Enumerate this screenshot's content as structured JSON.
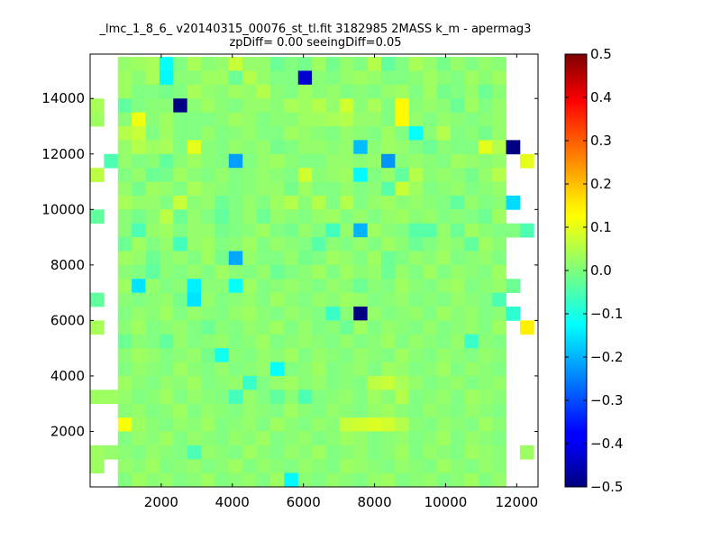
{
  "chart_data": {
    "type": "heatmap",
    "title": "_lmc_1_8_6_ v20140315_00076_st_tl.fit 3182985 2MASS k_m - apermag3",
    "subtitle": "zpDiff= 0.00 seeingDiff=0.05",
    "xlabel": "",
    "ylabel": "",
    "xlim": [
      0,
      12600
    ],
    "ylim": [
      0,
      15600
    ],
    "x_ticks": [
      2000,
      4000,
      6000,
      8000,
      10000,
      12000
    ],
    "y_ticks": [
      2000,
      4000,
      6000,
      8000,
      10000,
      12000,
      14000
    ],
    "grid": false,
    "colormap": "jet",
    "color_range": [
      -0.5,
      0.5
    ],
    "colorbar": {
      "ticks": [
        "0.5",
        "0.4",
        "0.3",
        "0.2",
        "0.1",
        "0.0",
        "−0.1",
        "−0.2",
        "−0.3",
        "−0.4",
        "−0.5"
      ],
      "values": [
        0.5,
        0.4,
        0.3,
        0.2,
        0.1,
        0.0,
        -0.1,
        -0.2,
        -0.3,
        -0.4,
        -0.5
      ]
    },
    "cell_size": [
      390,
      500
    ],
    "col_x_centers": [
      195,
      585,
      975,
      1365,
      1755,
      2145,
      2535,
      2925,
      3315,
      3705,
      4095,
      4485,
      4875,
      5265,
      5655,
      6045,
      6435,
      6825,
      7215,
      7605,
      7995,
      8385,
      8775,
      9165,
      9555,
      9945,
      10335,
      10725,
      11115,
      11505,
      11895,
      12285
    ],
    "row_y_centers": [
      15250,
      14750,
      14250,
      13750,
      13250,
      12750,
      12250,
      11750,
      11250,
      10750,
      10250,
      9750,
      9250,
      8750,
      8250,
      7750,
      7250,
      6750,
      6250,
      5750,
      5250,
      4750,
      4250,
      3750,
      3250,
      2750,
      2250,
      1750,
      1250,
      750,
      250
    ],
    "row_values": [
      [
        null,
        null,
        0.02,
        0.03,
        0.04,
        -0.12,
        0.0,
        0.04,
        0.01,
        0.02,
        0.07,
        0.02,
        0.02,
        -0.02,
        0.0,
        -0.01,
        0.03,
        -0.01,
        0.02,
        0.0,
        0.05,
        -0.03,
        0.0,
        0.04,
        0.02,
        -0.01,
        0.02,
        0.0,
        0.02,
        0.01,
        null,
        null
      ],
      [
        null,
        null,
        0.03,
        0.01,
        0.04,
        -0.13,
        0.01,
        0.01,
        0.03,
        0.03,
        -0.02,
        0.05,
        0.02,
        0.0,
        0.0,
        -0.42,
        0.01,
        0.0,
        0.02,
        0.03,
        0.02,
        0.0,
        0.0,
        0.01,
        0.03,
        0.01,
        0.0,
        0.03,
        0.01,
        0.03,
        null,
        null
      ],
      [
        null,
        null,
        0.03,
        0.0,
        0.0,
        -0.01,
        0.0,
        0.04,
        0.02,
        0.01,
        0.03,
        0.02,
        0.05,
        0.01,
        0.0,
        0.03,
        0.01,
        0.02,
        0.0,
        0.01,
        0.0,
        0.02,
        0.03,
        0.0,
        0.03,
        -0.01,
        0.0,
        0.02,
        -0.02,
        0.01,
        null,
        null
      ],
      [
        0.04,
        null,
        -0.03,
        0.0,
        0.01,
        0.01,
        -0.5,
        0.01,
        0.03,
        0.01,
        0.0,
        0.02,
        0.02,
        0.01,
        0.04,
        0.03,
        0.05,
        0.02,
        0.08,
        0.01,
        0.04,
        0.0,
        0.13,
        0.01,
        0.02,
        0.01,
        -0.02,
        0.03,
        0.0,
        0.02,
        null,
        null
      ],
      [
        0.03,
        null,
        0.01,
        0.11,
        0.01,
        0.03,
        0.0,
        0.0,
        0.0,
        0.01,
        0.03,
        0.02,
        0.0,
        0.01,
        0.01,
        0.03,
        0.03,
        0.04,
        0.05,
        0.02,
        0.02,
        0.0,
        0.13,
        0.02,
        0.0,
        0.02,
        0.01,
        0.0,
        0.01,
        0.02,
        null,
        null
      ],
      [
        null,
        null,
        0.05,
        0.07,
        0.0,
        0.03,
        0.0,
        0.0,
        0.02,
        0.0,
        0.01,
        0.02,
        0.0,
        0.0,
        0.03,
        0.02,
        0.01,
        0.0,
        0.02,
        0.01,
        0.0,
        0.03,
        0.0,
        -0.12,
        0.01,
        0.05,
        0.0,
        0.01,
        -0.01,
        0.02,
        null,
        null
      ],
      [
        null,
        null,
        0.02,
        0.05,
        0.03,
        0.04,
        0.0,
        0.1,
        0.01,
        0.0,
        0.02,
        0.01,
        0.02,
        -0.01,
        0.0,
        0.02,
        0.02,
        0.01,
        0.02,
        -0.19,
        0.01,
        0.03,
        0.02,
        0.0,
        -0.02,
        0.01,
        0.0,
        0.0,
        0.1,
        0.05,
        -0.5,
        null
      ],
      [
        null,
        -0.05,
        0.02,
        0.0,
        0.01,
        -0.03,
        0.01,
        0.03,
        0.01,
        0.0,
        -0.22,
        0.0,
        0.02,
        0.03,
        0.01,
        0.0,
        0.0,
        0.02,
        0.02,
        0.01,
        0.02,
        -0.23,
        0.01,
        0.02,
        0.01,
        0.0,
        0.03,
        0.02,
        0.01,
        0.02,
        null,
        0.1
      ],
      [
        0.06,
        null,
        0.0,
        0.02,
        -0.02,
        -0.01,
        0.03,
        0.01,
        0.0,
        0.02,
        0.0,
        0.01,
        0.02,
        0.01,
        0.0,
        0.08,
        0.01,
        0.02,
        0.03,
        -0.13,
        0.0,
        0.02,
        -0.03,
        0.05,
        0.01,
        0.02,
        0.01,
        -0.01,
        0.02,
        0.05,
        null,
        null
      ],
      [
        null,
        null,
        0.02,
        -0.01,
        0.03,
        0.02,
        0.0,
        0.04,
        0.02,
        0.01,
        0.0,
        0.01,
        0.02,
        0.02,
        -0.01,
        0.03,
        0.0,
        0.0,
        0.02,
        0.0,
        0.01,
        -0.04,
        0.07,
        0.03,
        0.0,
        0.01,
        0.02,
        0.0,
        0.01,
        0.02,
        null,
        null
      ],
      [
        null,
        null,
        0.04,
        0.02,
        0.02,
        0.0,
        0.07,
        0.01,
        0.02,
        -0.02,
        0.0,
        0.02,
        0.0,
        0.03,
        0.05,
        0.01,
        0.05,
        0.0,
        0.05,
        0.0,
        0.02,
        0.03,
        0.01,
        0.02,
        0.01,
        0.0,
        -0.03,
        0.02,
        0.0,
        0.01,
        -0.16,
        null
      ],
      [
        -0.03,
        null,
        0.01,
        -0.01,
        0.01,
        0.06,
        -0.02,
        0.02,
        0.0,
        -0.03,
        0.0,
        0.02,
        -0.02,
        0.02,
        0.01,
        0.0,
        0.02,
        0.03,
        0.0,
        0.02,
        0.0,
        0.02,
        0.03,
        0.01,
        0.02,
        0.0,
        0.01,
        0.0,
        -0.02,
        0.03,
        null,
        null
      ],
      [
        null,
        null,
        0.01,
        -0.05,
        0.02,
        0.03,
        0.0,
        0.02,
        0.02,
        -0.01,
        0.0,
        0.01,
        0.03,
        0.0,
        -0.01,
        0.02,
        0.0,
        -0.06,
        0.02,
        -0.2,
        0.03,
        0.01,
        0.0,
        -0.04,
        -0.04,
        0.02,
        -0.02,
        0.03,
        0.01,
        0.0,
        0.0,
        -0.05
      ],
      [
        null,
        null,
        -0.02,
        0.03,
        0.0,
        0.02,
        -0.06,
        0.02,
        0.03,
        0.0,
        0.01,
        0.03,
        0.0,
        0.02,
        0.01,
        0.0,
        -0.04,
        0.01,
        0.0,
        0.02,
        0.0,
        0.03,
        0.01,
        -0.02,
        0.0,
        0.02,
        0.01,
        -0.03,
        0.03,
        0.01,
        null,
        null
      ],
      [
        null,
        null,
        0.03,
        0.02,
        -0.02,
        0.01,
        0.02,
        0.0,
        0.03,
        -0.01,
        -0.21,
        0.02,
        0.0,
        0.0,
        0.02,
        -0.01,
        0.0,
        0.03,
        0.02,
        0.0,
        0.03,
        -0.02,
        0.0,
        0.02,
        0.01,
        0.03,
        0.0,
        0.01,
        0.02,
        0.0,
        null,
        null
      ],
      [
        null,
        null,
        0.01,
        0.0,
        -0.03,
        0.01,
        0.0,
        0.02,
        0.0,
        0.03,
        0.01,
        0.0,
        0.02,
        -0.02,
        0.0,
        0.01,
        0.03,
        0.0,
        0.03,
        0.01,
        0.02,
        -0.02,
        0.02,
        0.0,
        0.03,
        0.0,
        0.02,
        0.01,
        0.0,
        0.03,
        null,
        null
      ],
      [
        null,
        null,
        0.03,
        -0.15,
        0.02,
        0.0,
        0.01,
        -0.14,
        0.01,
        0.01,
        -0.12,
        0.03,
        0.0,
        0.01,
        0.02,
        0.01,
        0.0,
        0.02,
        0.01,
        -0.02,
        0.01,
        0.0,
        0.03,
        0.01,
        0.0,
        0.02,
        0.03,
        0.0,
        0.01,
        0.02,
        -0.02,
        null
      ],
      [
        -0.03,
        null,
        0.01,
        0.0,
        0.01,
        0.02,
        -0.01,
        -0.15,
        0.02,
        0.0,
        0.01,
        0.02,
        0.0,
        0.03,
        0.01,
        0.0,
        0.02,
        0.01,
        0.03,
        0.02,
        0.0,
        0.01,
        0.02,
        0.0,
        0.01,
        0.0,
        0.02,
        0.01,
        0.0,
        -0.05,
        null,
        null
      ],
      [
        null,
        null,
        0.0,
        0.02,
        0.01,
        0.03,
        0.0,
        0.02,
        0.01,
        0.0,
        0.02,
        0.03,
        0.01,
        0.0,
        0.02,
        0.01,
        0.0,
        -0.07,
        0.01,
        -0.5,
        0.02,
        0.0,
        0.01,
        0.02,
        0.0,
        0.03,
        0.01,
        0.02,
        0.0,
        0.01,
        -0.08,
        null
      ],
      [
        0.04,
        null,
        0.01,
        0.03,
        0.0,
        0.01,
        0.02,
        0.0,
        -0.02,
        0.01,
        0.0,
        0.02,
        0.01,
        0.03,
        0.0,
        0.02,
        0.0,
        0.01,
        -0.02,
        0.03,
        0.0,
        0.02,
        0.01,
        0.0,
        0.02,
        0.0,
        0.01,
        0.02,
        0.0,
        0.03,
        null,
        0.14
      ],
      [
        null,
        null,
        -0.02,
        0.01,
        0.0,
        -0.03,
        0.02,
        0.0,
        0.01,
        0.02,
        0.0,
        0.01,
        0.03,
        0.0,
        0.01,
        0.02,
        0.01,
        0.0,
        0.02,
        0.0,
        0.01,
        0.03,
        0.0,
        0.02,
        0.01,
        0.0,
        0.02,
        -0.07,
        0.01,
        0.0,
        null,
        null
      ],
      [
        null,
        null,
        0.01,
        0.03,
        0.02,
        0.0,
        0.01,
        0.02,
        -0.01,
        -0.11,
        0.01,
        0.0,
        0.02,
        0.01,
        0.03,
        0.0,
        0.02,
        0.01,
        0.0,
        0.02,
        0.01,
        0.0,
        0.03,
        0.01,
        0.0,
        0.02,
        0.01,
        0.0,
        0.02,
        0.01,
        null,
        null
      ],
      [
        null,
        null,
        0.0,
        0.02,
        0.01,
        0.0,
        0.03,
        0.01,
        0.0,
        0.02,
        0.0,
        0.01,
        0.02,
        -0.12,
        0.0,
        0.01,
        0.03,
        0.0,
        0.01,
        0.02,
        0.0,
        0.03,
        0.02,
        0.0,
        0.01,
        0.03,
        0.0,
        0.02,
        0.01,
        0.0,
        null,
        null
      ],
      [
        null,
        null,
        0.03,
        0.01,
        0.0,
        0.02,
        0.01,
        0.03,
        0.0,
        0.01,
        0.02,
        -0.07,
        0.0,
        0.02,
        0.03,
        0.01,
        0.02,
        0.0,
        0.01,
        0.0,
        0.06,
        0.07,
        0.04,
        0.02,
        0.0,
        0.01,
        0.02,
        0.0,
        0.01,
        0.02,
        null,
        null
      ],
      [
        0.03,
        0.03,
        0.02,
        0.0,
        0.01,
        0.03,
        0.0,
        0.02,
        0.01,
        0.0,
        -0.06,
        0.02,
        0.0,
        -0.03,
        0.01,
        -0.05,
        0.0,
        0.01,
        0.02,
        0.0,
        0.03,
        0.01,
        0.05,
        0.0,
        0.01,
        0.02,
        0.0,
        0.03,
        0.02,
        0.01,
        null,
        null
      ],
      [
        null,
        null,
        0.01,
        0.02,
        0.0,
        0.01,
        0.03,
        0.0,
        0.02,
        0.01,
        0.0,
        0.02,
        0.01,
        0.0,
        0.03,
        0.01,
        0.0,
        0.02,
        0.01,
        0.0,
        0.02,
        0.03,
        0.01,
        0.0,
        0.02,
        0.01,
        0.0,
        0.02,
        0.01,
        0.0,
        null,
        null
      ],
      [
        null,
        null,
        0.12,
        0.03,
        0.01,
        0.0,
        0.02,
        0.01,
        0.03,
        0.0,
        0.01,
        0.02,
        0.0,
        0.03,
        0.01,
        0.0,
        0.02,
        0.01,
        0.07,
        0.08,
        0.09,
        0.08,
        0.05,
        0.01,
        0.0,
        0.02,
        0.01,
        0.0,
        0.03,
        0.01,
        null,
        null
      ],
      [
        null,
        null,
        0.0,
        0.02,
        0.01,
        0.03,
        0.0,
        0.02,
        0.01,
        0.0,
        0.02,
        0.01,
        0.03,
        0.0,
        0.01,
        0.02,
        0.0,
        0.01,
        0.03,
        0.02,
        0.0,
        0.01,
        0.02,
        0.0,
        0.01,
        0.03,
        0.0,
        0.02,
        0.01,
        0.0,
        null,
        null
      ],
      [
        0.03,
        0.02,
        0.01,
        0.0,
        0.02,
        0.01,
        0.0,
        -0.05,
        0.02,
        0.01,
        0.0,
        0.03,
        0.01,
        0.0,
        0.02,
        0.01,
        0.03,
        0.0,
        0.01,
        0.02,
        0.0,
        0.01,
        0.03,
        0.0,
        0.02,
        0.01,
        0.0,
        0.03,
        0.02,
        0.01,
        null,
        0.03
      ],
      [
        0.03,
        null,
        0.02,
        0.01,
        0.03,
        0.0,
        0.01,
        0.02,
        0.0,
        0.01,
        0.03,
        0.0,
        0.02,
        0.01,
        0.0,
        0.02,
        0.01,
        0.0,
        0.03,
        0.02,
        0.01,
        0.0,
        0.02,
        0.01,
        0.0,
        0.03,
        0.01,
        0.0,
        0.02,
        0.01,
        null,
        null
      ],
      [
        null,
        null,
        0.0,
        0.03,
        0.01,
        0.02,
        0.0,
        0.01,
        0.03,
        0.0,
        0.01,
        0.02,
        0.0,
        0.03,
        -0.13,
        0.01,
        0.0,
        0.02,
        0.01,
        0.0,
        0.02,
        0.03,
        0.0,
        0.01,
        0.02,
        0.0,
        0.01,
        0.03,
        0.0,
        0.02,
        null,
        null
      ]
    ]
  }
}
